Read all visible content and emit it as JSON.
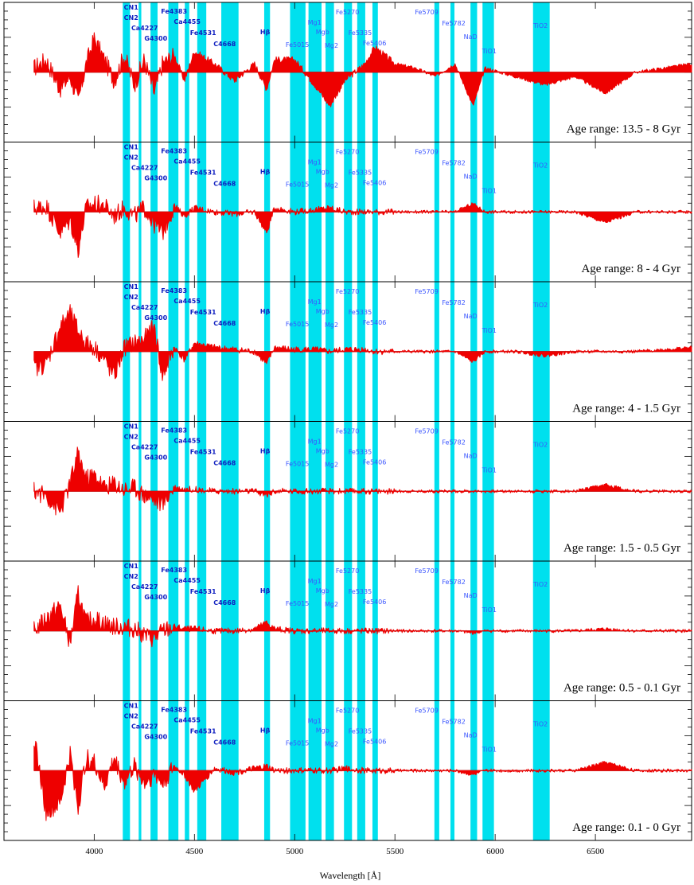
{
  "figure": {
    "xlabel": "Wavelength [Å]",
    "x_ticks": [
      "4000",
      "4500",
      "5000",
      "5500",
      "6000",
      "6500"
    ]
  },
  "colors": {
    "spectrum": "#ee0000",
    "band": "#00e0ee",
    "label_strong": "#1020c0",
    "label_light": "#3a55ff",
    "zero_line": "#000000"
  },
  "chart_data": {
    "type": "line",
    "xlim": [
      3550,
      6980
    ],
    "x_ticks": [
      4000,
      4500,
      5000,
      5500,
      6000,
      6500
    ],
    "xlabel": "Wavelength [Å]",
    "grid": false,
    "index_bands": [
      {
        "name": "CN1",
        "range": [
          4143,
          4178
        ]
      },
      {
        "name": "CN2",
        "range": [
          4143,
          4178
        ]
      },
      {
        "name": "Ca4227",
        "range": [
          4222,
          4235
        ]
      },
      {
        "name": "G4300",
        "range": [
          4281,
          4316
        ]
      },
      {
        "name": "Fe4383",
        "range": [
          4370,
          4420
        ]
      },
      {
        "name": "Ca4455",
        "range": [
          4452,
          4474
        ]
      },
      {
        "name": "Fe4531",
        "range": [
          4514,
          4559
        ]
      },
      {
        "name": "C4668",
        "range": [
          4634,
          4720
        ]
      },
      {
        "name": "Hβ",
        "range": [
          4848,
          4877
        ]
      },
      {
        "name": "Fe5015",
        "range": [
          4977,
          5054
        ]
      },
      {
        "name": "Mg1",
        "range": [
          5069,
          5134
        ]
      },
      {
        "name": "Mgb",
        "range": [
          5160,
          5192
        ]
      },
      {
        "name": "Mg2",
        "range": [
          5154,
          5196
        ]
      },
      {
        "name": "Fe5270",
        "range": [
          5246,
          5286
        ]
      },
      {
        "name": "Fe5335",
        "range": [
          5312,
          5352
        ]
      },
      {
        "name": "Fe5406",
        "range": [
          5388,
          5415
        ]
      },
      {
        "name": "Fe5709",
        "range": [
          5697,
          5721
        ]
      },
      {
        "name": "Fe5782",
        "range": [
          5777,
          5797
        ]
      },
      {
        "name": "NaD",
        "range": [
          5877,
          5910
        ]
      },
      {
        "name": "TiO1",
        "range": [
          5937,
          5994
        ]
      },
      {
        "name": "TiO2",
        "range": [
          6189,
          6272
        ]
      }
    ],
    "panels": [
      {
        "age_label": "Age range: 13.5 - 8 Gyr",
        "series": [
          {
            "x": [
              3700,
              3760,
              3830,
              3880,
              3920,
              3960,
              4000,
              4050,
              4100,
              4150,
              4200,
              4250,
              4300,
              4340,
              4400,
              4450,
              4500,
              4600,
              4700,
              4800,
              4860,
              4900,
              5000,
              5100,
              5175,
              5250,
              5350,
              5400,
              5500,
              5600,
              5700,
              5800,
              5890,
              5950,
              6100,
              6250,
              6400,
              6550,
              6700,
              6850,
              6980
            ],
            "y": [
              0.1,
              0.3,
              -0.4,
              -0.1,
              -0.7,
              0.2,
              0.8,
              0.3,
              -0.2,
              0.4,
              -0.3,
              0.3,
              -0.5,
              0.2,
              0.4,
              -0.2,
              0.5,
              0.2,
              -0.2,
              0.2,
              -0.4,
              0.3,
              0.3,
              -0.3,
              -0.8,
              -0.2,
              0.2,
              0.6,
              0.2,
              0.1,
              -0.1,
              0.2,
              -0.8,
              0.1,
              -0.1,
              -0.3,
              -0.1,
              -0.5,
              0.0,
              0.1,
              0.2
            ]
          }
        ]
      },
      {
        "age_label": "Age range: 8 - 4 Gyr",
        "series": [
          {
            "x": [
              3700,
              3760,
              3830,
              3880,
              3920,
              3960,
              4000,
              4050,
              4100,
              4150,
              4200,
              4250,
              4300,
              4340,
              4400,
              4450,
              4500,
              4600,
              4700,
              4800,
              4860,
              4900,
              5000,
              5100,
              5175,
              5250,
              5350,
              5400,
              5500,
              5600,
              5700,
              5800,
              5890,
              5950,
              6100,
              6250,
              6400,
              6550,
              6700,
              6850,
              6980
            ],
            "y": [
              0.1,
              0.15,
              -0.5,
              -0.2,
              -0.9,
              0.1,
              0.2,
              0.15,
              -0.1,
              0.1,
              -0.1,
              0.1,
              -0.3,
              -0.5,
              0.15,
              -0.1,
              0.1,
              0.0,
              -0.05,
              0.0,
              -0.5,
              0.1,
              0.0,
              0.05,
              0.1,
              0.0,
              0.0,
              0.0,
              0.0,
              0.0,
              0.0,
              0.0,
              0.2,
              0.0,
              0.0,
              0.0,
              0.0,
              -0.25,
              0.0,
              0.0,
              0.0
            ]
          }
        ]
      },
      {
        "age_label": "Age range: 4 - 1.5 Gyr",
        "series": [
          {
            "x": [
              3700,
              3760,
              3830,
              3880,
              3920,
              3960,
              4000,
              4050,
              4100,
              4150,
              4200,
              4250,
              4300,
              4340,
              4400,
              4450,
              4500,
              4600,
              4700,
              4800,
              4860,
              4900,
              5000,
              5100,
              5175,
              5250,
              5350,
              5400,
              5500,
              5600,
              5700,
              5800,
              5890,
              5950,
              6100,
              6250,
              6400,
              6550,
              6700,
              6850,
              6980
            ],
            "y": [
              -0.4,
              -0.3,
              0.6,
              0.9,
              0.5,
              0.2,
              0.1,
              -0.2,
              -0.6,
              0.1,
              0.2,
              0.3,
              0.6,
              -0.6,
              0.1,
              -0.2,
              0.2,
              0.1,
              0.05,
              0.0,
              -0.3,
              0.1,
              0.05,
              0.05,
              0.0,
              0.05,
              0.05,
              0.0,
              0.0,
              0.0,
              0.0,
              0.0,
              -0.25,
              0.0,
              0.0,
              -0.1,
              0.0,
              0.0,
              0.0,
              0.05,
              0.1
            ]
          }
        ]
      },
      {
        "age_label": "Age range: 1.5 - 0.5 Gyr",
        "series": [
          {
            "x": [
              3700,
              3760,
              3830,
              3880,
              3920,
              3960,
              4000,
              4050,
              4100,
              4150,
              4200,
              4250,
              4300,
              4340,
              4400,
              4450,
              4500,
              4600,
              4700,
              4800,
              4860,
              4900,
              5000,
              5100,
              5175,
              5250,
              5350,
              5400,
              5500,
              5600,
              5700,
              5800,
              5890,
              5950,
              6100,
              6250,
              6400,
              6550,
              6700,
              6850,
              6980
            ],
            "y": [
              0.0,
              -0.1,
              -0.5,
              0.2,
              0.9,
              0.3,
              0.4,
              0.1,
              0.2,
              0.05,
              0.1,
              -0.1,
              -0.2,
              -0.3,
              0.1,
              0.05,
              0.05,
              0.0,
              0.0,
              0.0,
              -0.1,
              0.0,
              0.0,
              0.0,
              0.0,
              0.0,
              0.0,
              0.0,
              0.0,
              0.0,
              0.0,
              0.0,
              0.0,
              0.0,
              0.0,
              0.0,
              0.0,
              0.15,
              0.0,
              0.0,
              0.0
            ]
          }
        ]
      },
      {
        "age_label": "Age range: 0.5 - 0.1 Gyr",
        "series": [
          {
            "x": [
              3700,
              3760,
              3830,
              3880,
              3920,
              3960,
              4000,
              4050,
              4100,
              4150,
              4200,
              4250,
              4300,
              4340,
              4400,
              4450,
              4500,
              4600,
              4700,
              4800,
              4860,
              4900,
              5000,
              5100,
              5175,
              5250,
              5350,
              5400,
              5500,
              5600,
              5700,
              5800,
              5890,
              5950,
              6100,
              6250,
              6400,
              6550,
              6700,
              6850,
              6980
            ],
            "y": [
              0.0,
              0.3,
              0.6,
              -0.3,
              0.9,
              0.2,
              0.3,
              0.2,
              0.1,
              0.1,
              0.05,
              -0.1,
              -0.2,
              0.0,
              0.1,
              0.05,
              0.05,
              0.0,
              0.0,
              0.05,
              0.2,
              0.05,
              0.0,
              0.0,
              0.0,
              0.0,
              0.0,
              0.0,
              0.0,
              0.0,
              0.0,
              0.0,
              -0.05,
              0.0,
              0.0,
              0.0,
              0.0,
              0.05,
              0.0,
              0.0,
              0.0
            ]
          }
        ]
      },
      {
        "age_label": "Age range: 0.1 - 0 Gyr",
        "series": [
          {
            "x": [
              3700,
              3760,
              3830,
              3880,
              3920,
              3960,
              4000,
              4050,
              4100,
              4150,
              4200,
              4250,
              4300,
              4340,
              4400,
              4450,
              4500,
              4600,
              4700,
              4800,
              4860,
              4900,
              5000,
              5100,
              5175,
              5250,
              5350,
              5400,
              5500,
              5600,
              5700,
              5800,
              5890,
              5950,
              6100,
              6250,
              6400,
              6550,
              6700,
              6850,
              6980
            ],
            "y": [
              0.8,
              -1.0,
              -0.8,
              0.4,
              -0.9,
              0.3,
              0.2,
              -0.4,
              0.3,
              -0.3,
              0.1,
              -0.3,
              -0.1,
              -0.3,
              0.1,
              -0.1,
              -0.5,
              0.05,
              -0.05,
              0.05,
              0.1,
              0.0,
              0.0,
              0.0,
              0.0,
              0.05,
              0.0,
              0.0,
              0.0,
              0.0,
              0.0,
              0.0,
              -0.1,
              0.0,
              0.0,
              0.0,
              0.0,
              0.2,
              0.0,
              0.0,
              0.0
            ]
          }
        ]
      }
    ]
  }
}
